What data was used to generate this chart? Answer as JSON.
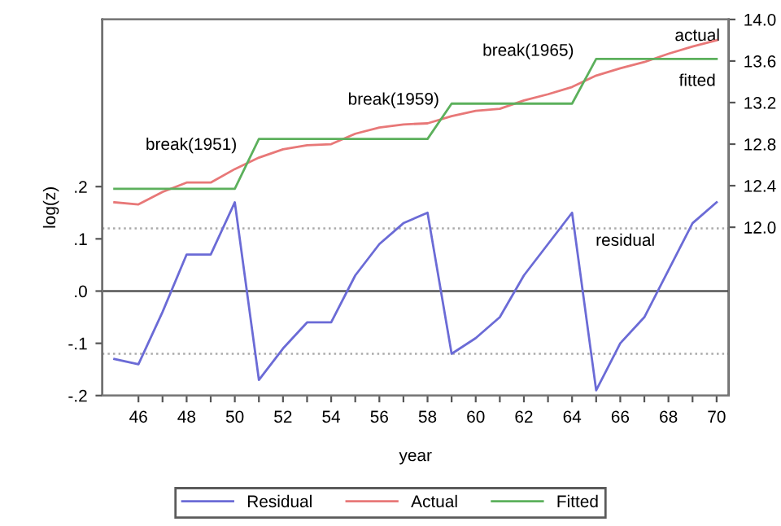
{
  "chart_data": {
    "type": "line",
    "xlabel": "year",
    "ylabel": "log(z)",
    "x": [
      45,
      46,
      47,
      48,
      49,
      50,
      51,
      52,
      53,
      54,
      55,
      56,
      57,
      58,
      59,
      60,
      61,
      62,
      63,
      64,
      65,
      66,
      67,
      68,
      69,
      70
    ],
    "series": [
      {
        "name": "Residual",
        "color": "#6b6bd6",
        "values": [
          -0.13,
          -0.14,
          -0.04,
          0.07,
          0.07,
          0.17,
          -0.17,
          -0.11,
          -0.06,
          -0.06,
          0.03,
          0.09,
          0.13,
          0.15,
          -0.12,
          -0.09,
          -0.05,
          0.03,
          0.09,
          0.15,
          -0.19,
          -0.1,
          -0.05,
          0.04,
          0.13,
          0.17
        ]
      },
      {
        "name": "Actual",
        "color": "#e87878",
        "axis": "y2",
        "values": [
          12.24,
          12.22,
          12.34,
          12.43,
          12.43,
          12.56,
          12.67,
          12.75,
          12.79,
          12.8,
          12.9,
          12.96,
          12.99,
          13.0,
          13.07,
          13.12,
          13.14,
          13.22,
          13.28,
          13.35,
          13.46,
          13.53,
          13.59,
          13.67,
          13.74,
          13.8
        ]
      },
      {
        "name": "Fitted",
        "color": "#5cb05c",
        "axis": "y2",
        "values": [
          12.37,
          12.37,
          12.37,
          12.37,
          12.37,
          12.37,
          12.85,
          12.85,
          12.85,
          12.85,
          12.85,
          12.85,
          12.85,
          12.85,
          13.19,
          13.19,
          13.19,
          13.19,
          13.19,
          13.19,
          13.62,
          13.62,
          13.62,
          13.62,
          13.62,
          13.62
        ]
      }
    ],
    "xlim": [
      44.5,
      70.5
    ],
    "xticks": [
      {
        "value": 46,
        "label": "46"
      },
      {
        "value": 47,
        "label": null
      },
      {
        "value": 48,
        "label": "48"
      },
      {
        "value": 49,
        "label": null
      },
      {
        "value": 50,
        "label": "50"
      },
      {
        "value": 51,
        "label": null
      },
      {
        "value": 52,
        "label": "52"
      },
      {
        "value": 53,
        "label": null
      },
      {
        "value": 54,
        "label": "54"
      },
      {
        "value": 55,
        "label": null
      },
      {
        "value": 56,
        "label": "56"
      },
      {
        "value": 57,
        "label": null
      },
      {
        "value": 58,
        "label": "58"
      },
      {
        "value": 59,
        "label": null
      },
      {
        "value": 60,
        "label": "60"
      },
      {
        "value": 61,
        "label": null
      },
      {
        "value": 62,
        "label": "62"
      },
      {
        "value": 63,
        "label": null
      },
      {
        "value": 64,
        "label": "64"
      },
      {
        "value": 65,
        "label": null
      },
      {
        "value": 66,
        "label": "66"
      },
      {
        "value": 67,
        "label": null
      },
      {
        "value": 68,
        "label": "68"
      },
      {
        "value": 69,
        "label": null
      },
      {
        "value": 70,
        "label": "70"
      }
    ],
    "ylim": [
      -0.2,
      0.52
    ],
    "yticks": [
      {
        "value": -0.2,
        "label": "-.2"
      },
      {
        "value": -0.1,
        "label": "-.1"
      },
      {
        "value": 0,
        "label": ".0"
      },
      {
        "value": 0.1,
        "label": ".1"
      },
      {
        "value": 0.2,
        "label": ".2"
      }
    ],
    "y2lim": [
      10.38,
      14.0
    ],
    "y2ticks": [
      {
        "value": 12.0,
        "label": "12.0"
      },
      {
        "value": 12.4,
        "label": "12.4"
      },
      {
        "value": 12.8,
        "label": "12.8"
      },
      {
        "value": 13.2,
        "label": "13.2"
      },
      {
        "value": 13.6,
        "label": "13.6"
      },
      {
        "value": 14.0,
        "label": "14.0"
      }
    ],
    "ref_lines": [
      {
        "axis": "y",
        "value": 0,
        "color": "#555555",
        "line_style": "solid"
      },
      {
        "axis": "y",
        "value": 0.12,
        "color": "#aaaaaa",
        "line_style": "dotted"
      },
      {
        "axis": "y",
        "value": -0.12,
        "color": "#aaaaaa",
        "line_style": "dotted"
      }
    ],
    "annotations": [
      "break(1951)",
      "break(1959)",
      "break(1965)",
      "actual",
      "fitted",
      "residual"
    ],
    "legend": "bottom",
    "grid": false,
    "marker": "none",
    "line_style": "solid"
  }
}
